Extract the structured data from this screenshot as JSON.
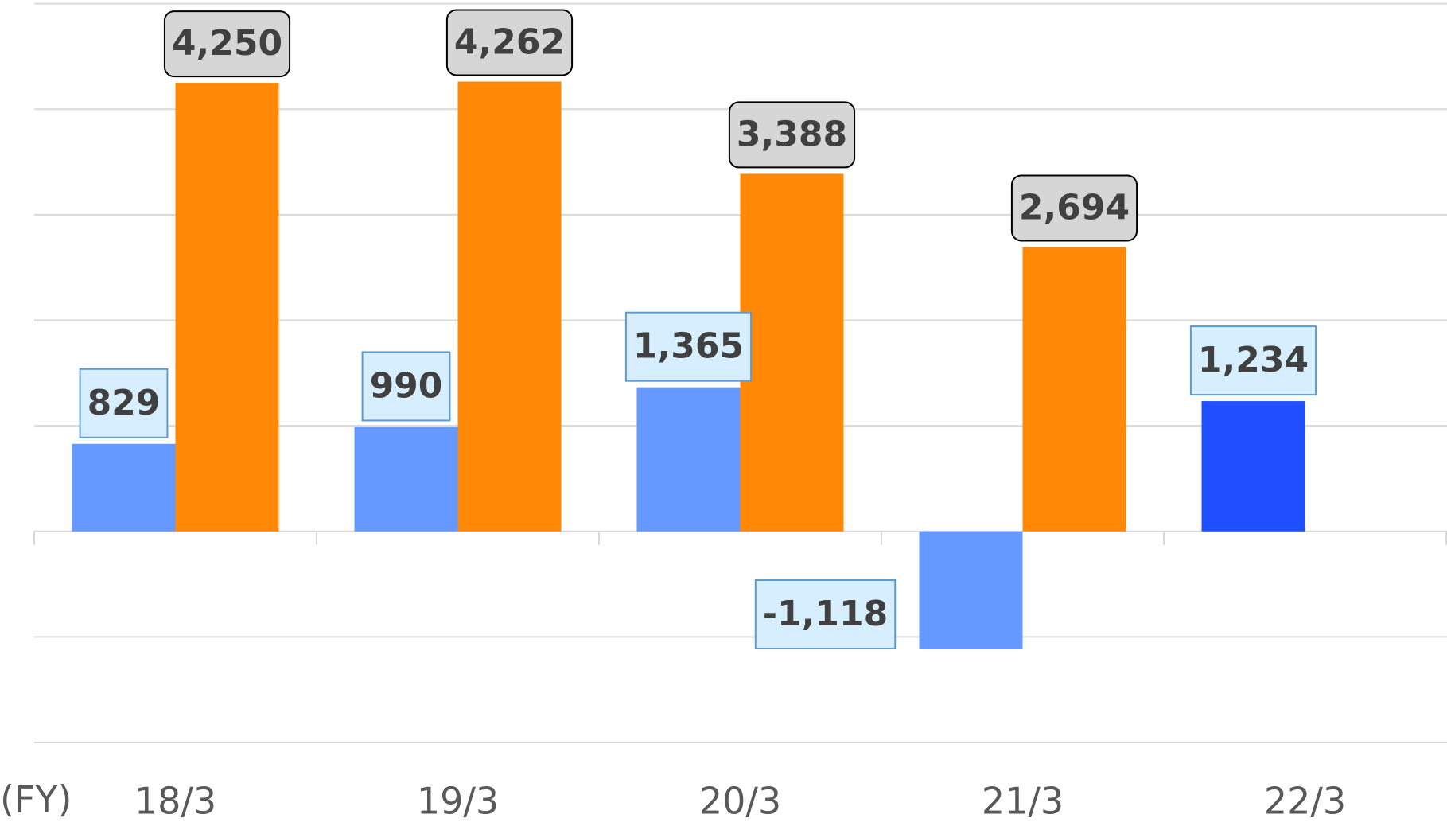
{
  "chart_data": {
    "type": "bar",
    "x_label": "(FY)",
    "categories": [
      "18/3",
      "19/3",
      "20/3",
      "21/3",
      "22/3"
    ],
    "series": [
      {
        "name": null,
        "color": "#6699ff",
        "point_colors": [
          "#6699ff",
          "#6699ff",
          "#6699ff",
          "#6699ff",
          "#1f4fff"
        ],
        "values": [
          829,
          990,
          1365,
          -1118,
          1234
        ],
        "value_labels": [
          "829",
          "990",
          "1,365",
          "-1,118",
          "1,234"
        ]
      },
      {
        "name": null,
        "color": "#ff8806",
        "values": [
          4250,
          4262,
          3388,
          2694,
          null
        ],
        "value_labels": [
          "4,250",
          "4,262",
          "3,388",
          "2,694",
          null
        ]
      }
    ],
    "ylim": [
      -2000,
      5000
    ],
    "yticks": [
      -2000,
      -1000,
      0,
      1000,
      2000,
      3000,
      4000,
      5000
    ],
    "grid": true
  }
}
